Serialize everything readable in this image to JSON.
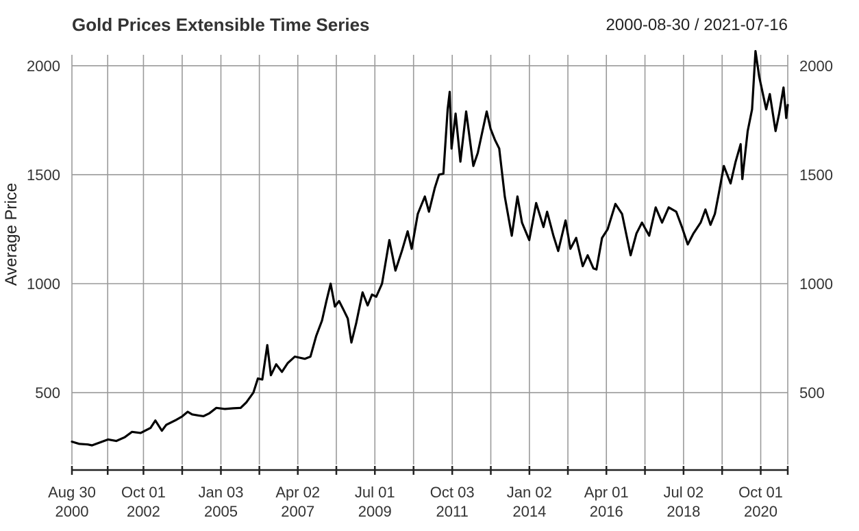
{
  "chart_data": {
    "type": "line",
    "title": "Gold Prices Extensible Time Series",
    "date_range": "2000-08-30 / 2021-07-16",
    "ylabel": "Average Price",
    "xlabel": "",
    "xlim": [
      "2000-08-30",
      "2021-07-16"
    ],
    "ylim": [
      170,
      2050
    ],
    "y_ticks": [
      500,
      1000,
      1500,
      2000
    ],
    "y_tick_labels": [
      "500",
      "1000",
      "1500",
      "2000"
    ],
    "x_ticks": [
      {
        "date": "2000-08-30",
        "line1": "Aug 30",
        "line2": "2000"
      },
      {
        "date": "2002-10-01",
        "line1": "Oct 01",
        "line2": "2002"
      },
      {
        "date": "2005-01-03",
        "line1": "Jan 03",
        "line2": "2005"
      },
      {
        "date": "2007-04-02",
        "line1": "Apr 02",
        "line2": "2007"
      },
      {
        "date": "2009-07-01",
        "line1": "Jul 01",
        "line2": "2009"
      },
      {
        "date": "2011-10-03",
        "line1": "Oct 03",
        "line2": "2011"
      },
      {
        "date": "2014-01-02",
        "line1": "Jan 02",
        "line2": "2014"
      },
      {
        "date": "2016-04-01",
        "line1": "Apr 01",
        "line2": "2016"
      },
      {
        "date": "2018-07-02",
        "line1": "Jul 02",
        "line2": "2018"
      },
      {
        "date": "2020-10-01",
        "line1": "Oct 01",
        "line2": "2020"
      }
    ],
    "grid": true,
    "line_color": "#000000",
    "grid_color": "#9a9a9a",
    "series": [
      {
        "x": [
          "2000-08-30",
          "2000-11-15",
          "2001-02-15",
          "2001-04-01",
          "2001-06-15",
          "2001-09-20",
          "2001-12-15",
          "2002-03-15",
          "2002-06-01",
          "2002-09-01",
          "2002-12-15",
          "2003-02-05",
          "2003-04-15",
          "2003-06-01",
          "2003-09-15",
          "2003-11-15",
          "2004-01-15",
          "2004-03-01",
          "2004-05-10",
          "2004-07-01",
          "2004-09-01",
          "2004-11-15",
          "2005-02-15",
          "2005-05-15",
          "2005-08-01",
          "2005-10-01",
          "2005-12-15",
          "2006-02-01",
          "2006-03-20",
          "2006-05-12",
          "2006-06-20",
          "2006-08-15",
          "2006-10-15",
          "2006-12-15",
          "2007-03-01",
          "2007-06-15",
          "2007-08-15",
          "2007-10-15",
          "2007-12-15",
          "2008-02-01",
          "2008-03-17",
          "2008-05-01",
          "2008-06-15",
          "2008-08-01",
          "2008-09-15",
          "2008-10-24",
          "2008-12-15",
          "2009-02-20",
          "2009-04-15",
          "2009-06-01",
          "2009-07-15",
          "2009-09-15",
          "2009-12-02",
          "2010-02-05",
          "2010-04-15",
          "2010-06-15",
          "2010-07-28",
          "2010-10-01",
          "2010-12-15",
          "2011-01-28",
          "2011-04-01",
          "2011-05-15",
          "2011-07-01",
          "2011-08-15",
          "2011-09-06",
          "2011-09-26",
          "2011-11-08",
          "2011-12-29",
          "2012-02-28",
          "2012-05-15",
          "2012-07-01",
          "2012-10-04",
          "2012-11-15",
          "2012-12-31",
          "2013-02-15",
          "2013-04-15",
          "2013-06-28",
          "2013-08-28",
          "2013-10-15",
          "2013-12-31",
          "2014-03-15",
          "2014-06-01",
          "2014-07-10",
          "2014-09-15",
          "2014-11-05",
          "2015-01-22",
          "2015-03-15",
          "2015-05-15",
          "2015-07-24",
          "2015-09-15",
          "2015-11-15",
          "2015-12-17",
          "2016-02-15",
          "2016-04-15",
          "2016-07-06",
          "2016-09-15",
          "2016-12-15",
          "2017-02-15",
          "2017-04-15",
          "2017-07-01",
          "2017-09-08",
          "2017-11-15",
          "2018-01-25",
          "2018-04-15",
          "2018-06-15",
          "2018-08-16",
          "2018-10-15",
          "2018-12-31",
          "2019-02-20",
          "2019-04-15",
          "2019-06-01",
          "2019-07-15",
          "2019-09-04",
          "2019-11-15",
          "2020-01-08",
          "2020-03-01",
          "2020-03-19",
          "2020-05-15",
          "2020-07-01",
          "2020-08-06",
          "2020-09-15",
          "2020-11-28",
          "2021-01-06",
          "2021-03-08",
          "2021-04-15",
          "2021-06-01",
          "2021-06-30",
          "2021-07-16"
        ],
        "values": [
          275,
          265,
          262,
          258,
          270,
          285,
          278,
          295,
          320,
          315,
          338,
          372,
          325,
          352,
          375,
          390,
          412,
          400,
          395,
          392,
          405,
          430,
          425,
          428,
          430,
          455,
          500,
          565,
          560,
          718,
          580,
          630,
          595,
          635,
          665,
          655,
          665,
          760,
          830,
          920,
          1000,
          895,
          920,
          880,
          840,
          730,
          820,
          960,
          900,
          950,
          940,
          1000,
          1200,
          1060,
          1150,
          1240,
          1160,
          1320,
          1400,
          1330,
          1440,
          1500,
          1505,
          1800,
          1880,
          1620,
          1780,
          1560,
          1790,
          1540,
          1600,
          1790,
          1710,
          1660,
          1620,
          1400,
          1220,
          1400,
          1280,
          1200,
          1370,
          1260,
          1330,
          1220,
          1150,
          1290,
          1160,
          1210,
          1080,
          1130,
          1070,
          1065,
          1210,
          1250,
          1366,
          1320,
          1130,
          1230,
          1280,
          1220,
          1350,
          1280,
          1350,
          1330,
          1260,
          1180,
          1230,
          1280,
          1340,
          1270,
          1320,
          1420,
          1540,
          1460,
          1560,
          1640,
          1480,
          1700,
          1800,
          2067,
          1950,
          1800,
          1870,
          1700,
          1780,
          1900,
          1760,
          1820
        ]
      }
    ]
  }
}
